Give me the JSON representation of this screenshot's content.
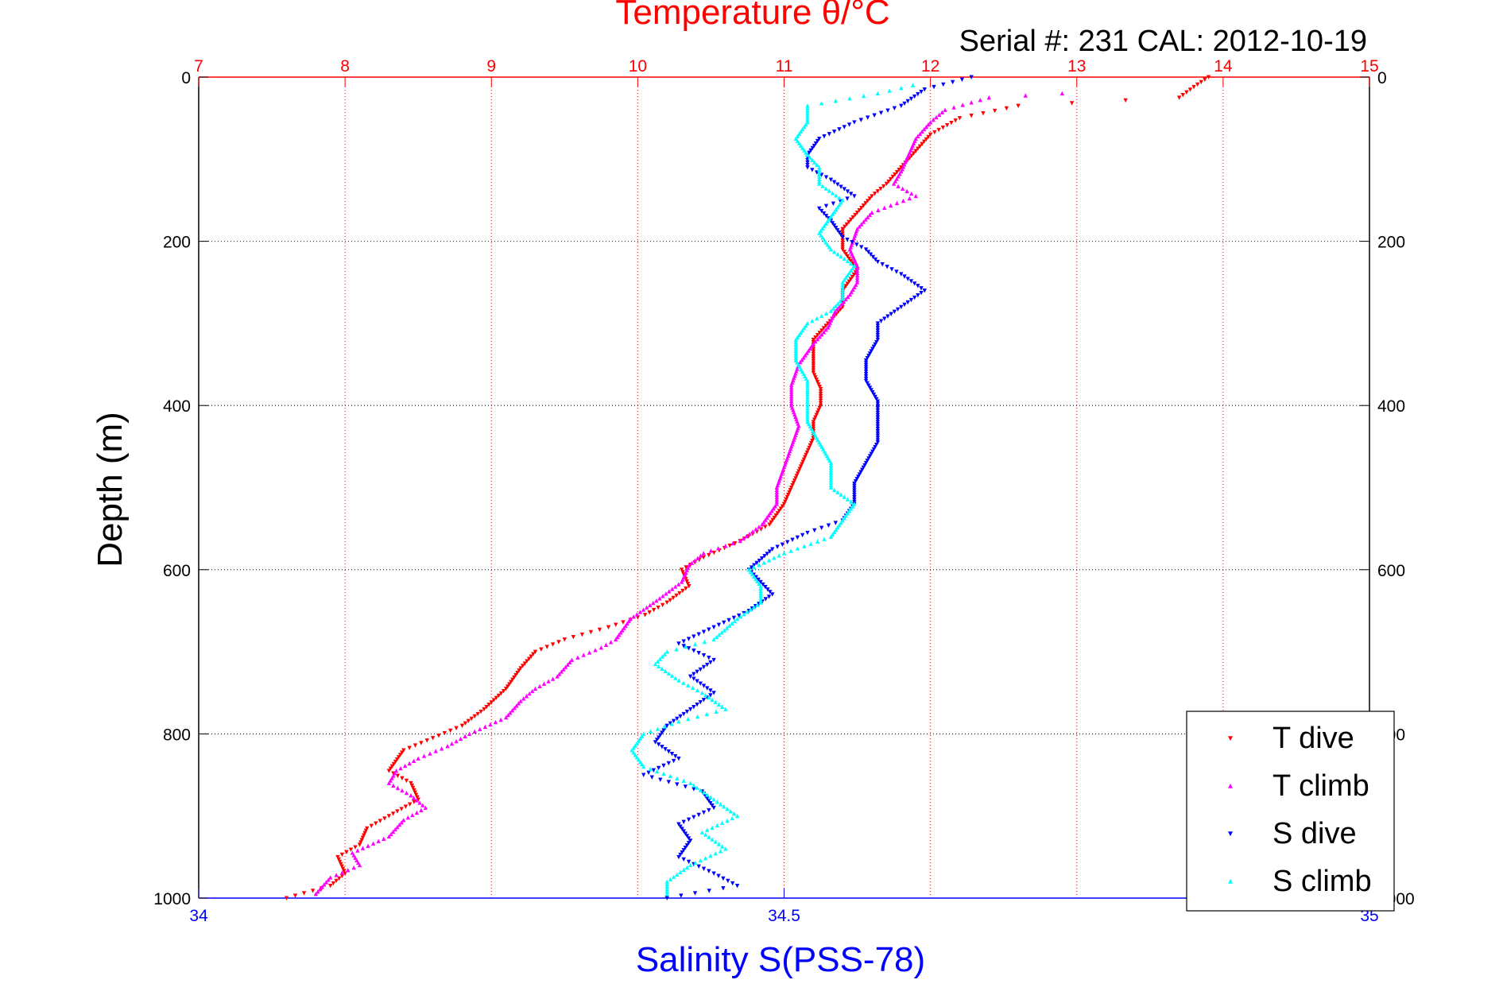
{
  "chart_data": {
    "type": "scatter",
    "title": "Temperature θ/°C",
    "subtitle": "Serial #: 231  CAL: 2012-10-19",
    "xlabel_top": "Temperature θ/°C",
    "xlabel_bottom": "Salinity S(PSS-78)",
    "ylabel": "Depth (m)",
    "x_top_lim": [
      7,
      15
    ],
    "x_top_ticks": [
      "7",
      "8",
      "9",
      "10",
      "11",
      "12",
      "13",
      "14",
      "15"
    ],
    "x_bottom_lim": [
      34,
      35
    ],
    "x_bottom_ticks": [
      "34",
      "34.5",
      "35"
    ],
    "ylim": [
      0,
      1000
    ],
    "y_reversed": true,
    "y_ticks": [
      "0",
      "200",
      "400",
      "600",
      "800",
      "1000"
    ],
    "grid": true,
    "legend_position": "bottom-right",
    "colors": {
      "top_axis": "#ff0000",
      "bottom_axis": "#0000ff"
    },
    "series": [
      {
        "name": "T dive",
        "axis": "temperature",
        "color": "#ff0000",
        "marker": "triangle-down",
        "points": [
          [
            13.9,
            0
          ],
          [
            13.8,
            12
          ],
          [
            13.7,
            25
          ],
          [
            12.6,
            35
          ],
          [
            12.2,
            50
          ],
          [
            12.0,
            70
          ],
          [
            11.9,
            90
          ],
          [
            11.8,
            110
          ],
          [
            11.7,
            130
          ],
          [
            11.6,
            145
          ],
          [
            11.5,
            165
          ],
          [
            11.4,
            185
          ],
          [
            11.4,
            210
          ],
          [
            11.5,
            235
          ],
          [
            11.4,
            260
          ],
          [
            11.4,
            280
          ],
          [
            11.3,
            300
          ],
          [
            11.2,
            320
          ],
          [
            11.2,
            340
          ],
          [
            11.2,
            360
          ],
          [
            11.25,
            380
          ],
          [
            11.25,
            400
          ],
          [
            11.2,
            420
          ],
          [
            11.2,
            440
          ],
          [
            11.15,
            460
          ],
          [
            11.1,
            480
          ],
          [
            11.05,
            500
          ],
          [
            11.0,
            520
          ],
          [
            10.9,
            545
          ],
          [
            10.7,
            565
          ],
          [
            10.45,
            585
          ],
          [
            10.3,
            600
          ],
          [
            10.35,
            620
          ],
          [
            10.2,
            640
          ],
          [
            10.05,
            655
          ],
          [
            9.8,
            670
          ],
          [
            9.5,
            685
          ],
          [
            9.3,
            700
          ],
          [
            9.2,
            720
          ],
          [
            9.1,
            745
          ],
          [
            8.95,
            770
          ],
          [
            8.8,
            790
          ],
          [
            8.6,
            805
          ],
          [
            8.4,
            820
          ],
          [
            8.3,
            845
          ],
          [
            8.45,
            860
          ],
          [
            8.5,
            880
          ],
          [
            8.3,
            900
          ],
          [
            8.15,
            915
          ],
          [
            8.1,
            935
          ],
          [
            7.95,
            950
          ],
          [
            8.0,
            970
          ],
          [
            7.9,
            985
          ],
          [
            7.6,
            1000
          ]
        ]
      },
      {
        "name": "T climb",
        "axis": "temperature",
        "color": "#ff00ff",
        "marker": "triangle-up",
        "points": [
          [
            12.9,
            20
          ],
          [
            12.4,
            25
          ],
          [
            12.1,
            40
          ],
          [
            12.0,
            55
          ],
          [
            11.9,
            75
          ],
          [
            11.85,
            95
          ],
          [
            11.8,
            115
          ],
          [
            11.75,
            130
          ],
          [
            11.9,
            145
          ],
          [
            11.6,
            165
          ],
          [
            11.5,
            185
          ],
          [
            11.45,
            210
          ],
          [
            11.5,
            230
          ],
          [
            11.5,
            250
          ],
          [
            11.45,
            265
          ],
          [
            11.35,
            285
          ],
          [
            11.3,
            305
          ],
          [
            11.2,
            325
          ],
          [
            11.1,
            350
          ],
          [
            11.05,
            375
          ],
          [
            11.05,
            400
          ],
          [
            11.1,
            425
          ],
          [
            11.05,
            450
          ],
          [
            11.0,
            475
          ],
          [
            10.95,
            500
          ],
          [
            10.95,
            520
          ],
          [
            10.85,
            545
          ],
          [
            10.7,
            565
          ],
          [
            10.45,
            580
          ],
          [
            10.35,
            595
          ],
          [
            10.3,
            615
          ],
          [
            10.15,
            635
          ],
          [
            9.95,
            660
          ],
          [
            9.85,
            685
          ],
          [
            9.75,
            695
          ],
          [
            9.55,
            710
          ],
          [
            9.45,
            730
          ],
          [
            9.3,
            745
          ],
          [
            9.2,
            760
          ],
          [
            9.1,
            780
          ],
          [
            8.85,
            800
          ],
          [
            8.7,
            815
          ],
          [
            8.5,
            830
          ],
          [
            8.35,
            845
          ],
          [
            8.3,
            860
          ],
          [
            8.45,
            875
          ],
          [
            8.55,
            890
          ],
          [
            8.4,
            905
          ],
          [
            8.3,
            925
          ],
          [
            8.05,
            945
          ],
          [
            8.1,
            960
          ],
          [
            7.9,
            975
          ],
          [
            7.8,
            995
          ]
        ]
      },
      {
        "name": "S dive",
        "axis": "salinity",
        "color": "#0000ff",
        "marker": "triangle-down",
        "points": [
          [
            34.66,
            0
          ],
          [
            34.62,
            15
          ],
          [
            34.6,
            35
          ],
          [
            34.56,
            55
          ],
          [
            34.53,
            75
          ],
          [
            34.52,
            95
          ],
          [
            34.52,
            110
          ],
          [
            34.54,
            125
          ],
          [
            34.56,
            145
          ],
          [
            34.53,
            160
          ],
          [
            34.54,
            175
          ],
          [
            34.55,
            195
          ],
          [
            34.57,
            210
          ],
          [
            34.58,
            225
          ],
          [
            34.6,
            240
          ],
          [
            34.62,
            260
          ],
          [
            34.6,
            280
          ],
          [
            34.58,
            300
          ],
          [
            34.58,
            320
          ],
          [
            34.57,
            345
          ],
          [
            34.57,
            370
          ],
          [
            34.58,
            395
          ],
          [
            34.58,
            420
          ],
          [
            34.58,
            445
          ],
          [
            34.57,
            470
          ],
          [
            34.56,
            495
          ],
          [
            34.56,
            520
          ],
          [
            34.55,
            540
          ],
          [
            34.52,
            555
          ],
          [
            34.49,
            575
          ],
          [
            34.47,
            600
          ],
          [
            34.48,
            615
          ],
          [
            34.49,
            630
          ],
          [
            34.47,
            650
          ],
          [
            34.44,
            670
          ],
          [
            34.41,
            690
          ],
          [
            34.44,
            710
          ],
          [
            34.42,
            730
          ],
          [
            34.44,
            750
          ],
          [
            34.42,
            770
          ],
          [
            34.4,
            790
          ],
          [
            34.39,
            810
          ],
          [
            34.41,
            830
          ],
          [
            34.38,
            850
          ],
          [
            34.43,
            870
          ],
          [
            34.44,
            890
          ],
          [
            34.41,
            910
          ],
          [
            34.42,
            930
          ],
          [
            34.41,
            950
          ],
          [
            34.44,
            970
          ],
          [
            34.46,
            985
          ],
          [
            34.4,
            1000
          ]
        ]
      },
      {
        "name": "S climb",
        "axis": "salinity",
        "color": "#00ffff",
        "marker": "triangle-up",
        "points": [
          [
            34.61,
            10
          ],
          [
            34.58,
            20
          ],
          [
            34.52,
            35
          ],
          [
            34.52,
            55
          ],
          [
            34.51,
            75
          ],
          [
            34.52,
            95
          ],
          [
            34.53,
            110
          ],
          [
            34.53,
            130
          ],
          [
            34.55,
            150
          ],
          [
            34.54,
            170
          ],
          [
            34.53,
            190
          ],
          [
            34.54,
            210
          ],
          [
            34.56,
            230
          ],
          [
            34.55,
            250
          ],
          [
            34.55,
            270
          ],
          [
            34.54,
            285
          ],
          [
            34.52,
            300
          ],
          [
            34.51,
            320
          ],
          [
            34.51,
            345
          ],
          [
            34.52,
            370
          ],
          [
            34.52,
            395
          ],
          [
            34.52,
            420
          ],
          [
            34.53,
            445
          ],
          [
            34.54,
            470
          ],
          [
            34.54,
            500
          ],
          [
            34.56,
            520
          ],
          [
            34.55,
            540
          ],
          [
            34.54,
            560
          ],
          [
            34.5,
            580
          ],
          [
            34.47,
            600
          ],
          [
            34.48,
            620
          ],
          [
            34.48,
            640
          ],
          [
            34.46,
            660
          ],
          [
            34.44,
            685
          ],
          [
            34.4,
            700
          ],
          [
            34.39,
            715
          ],
          [
            34.41,
            735
          ],
          [
            34.43,
            750
          ],
          [
            34.45,
            770
          ],
          [
            34.41,
            785
          ],
          [
            34.38,
            800
          ],
          [
            34.37,
            820
          ],
          [
            34.38,
            840
          ],
          [
            34.42,
            860
          ],
          [
            34.44,
            880
          ],
          [
            34.46,
            900
          ],
          [
            34.43,
            920
          ],
          [
            34.45,
            940
          ],
          [
            34.42,
            960
          ],
          [
            34.4,
            980
          ],
          [
            34.4,
            995
          ]
        ]
      }
    ]
  }
}
